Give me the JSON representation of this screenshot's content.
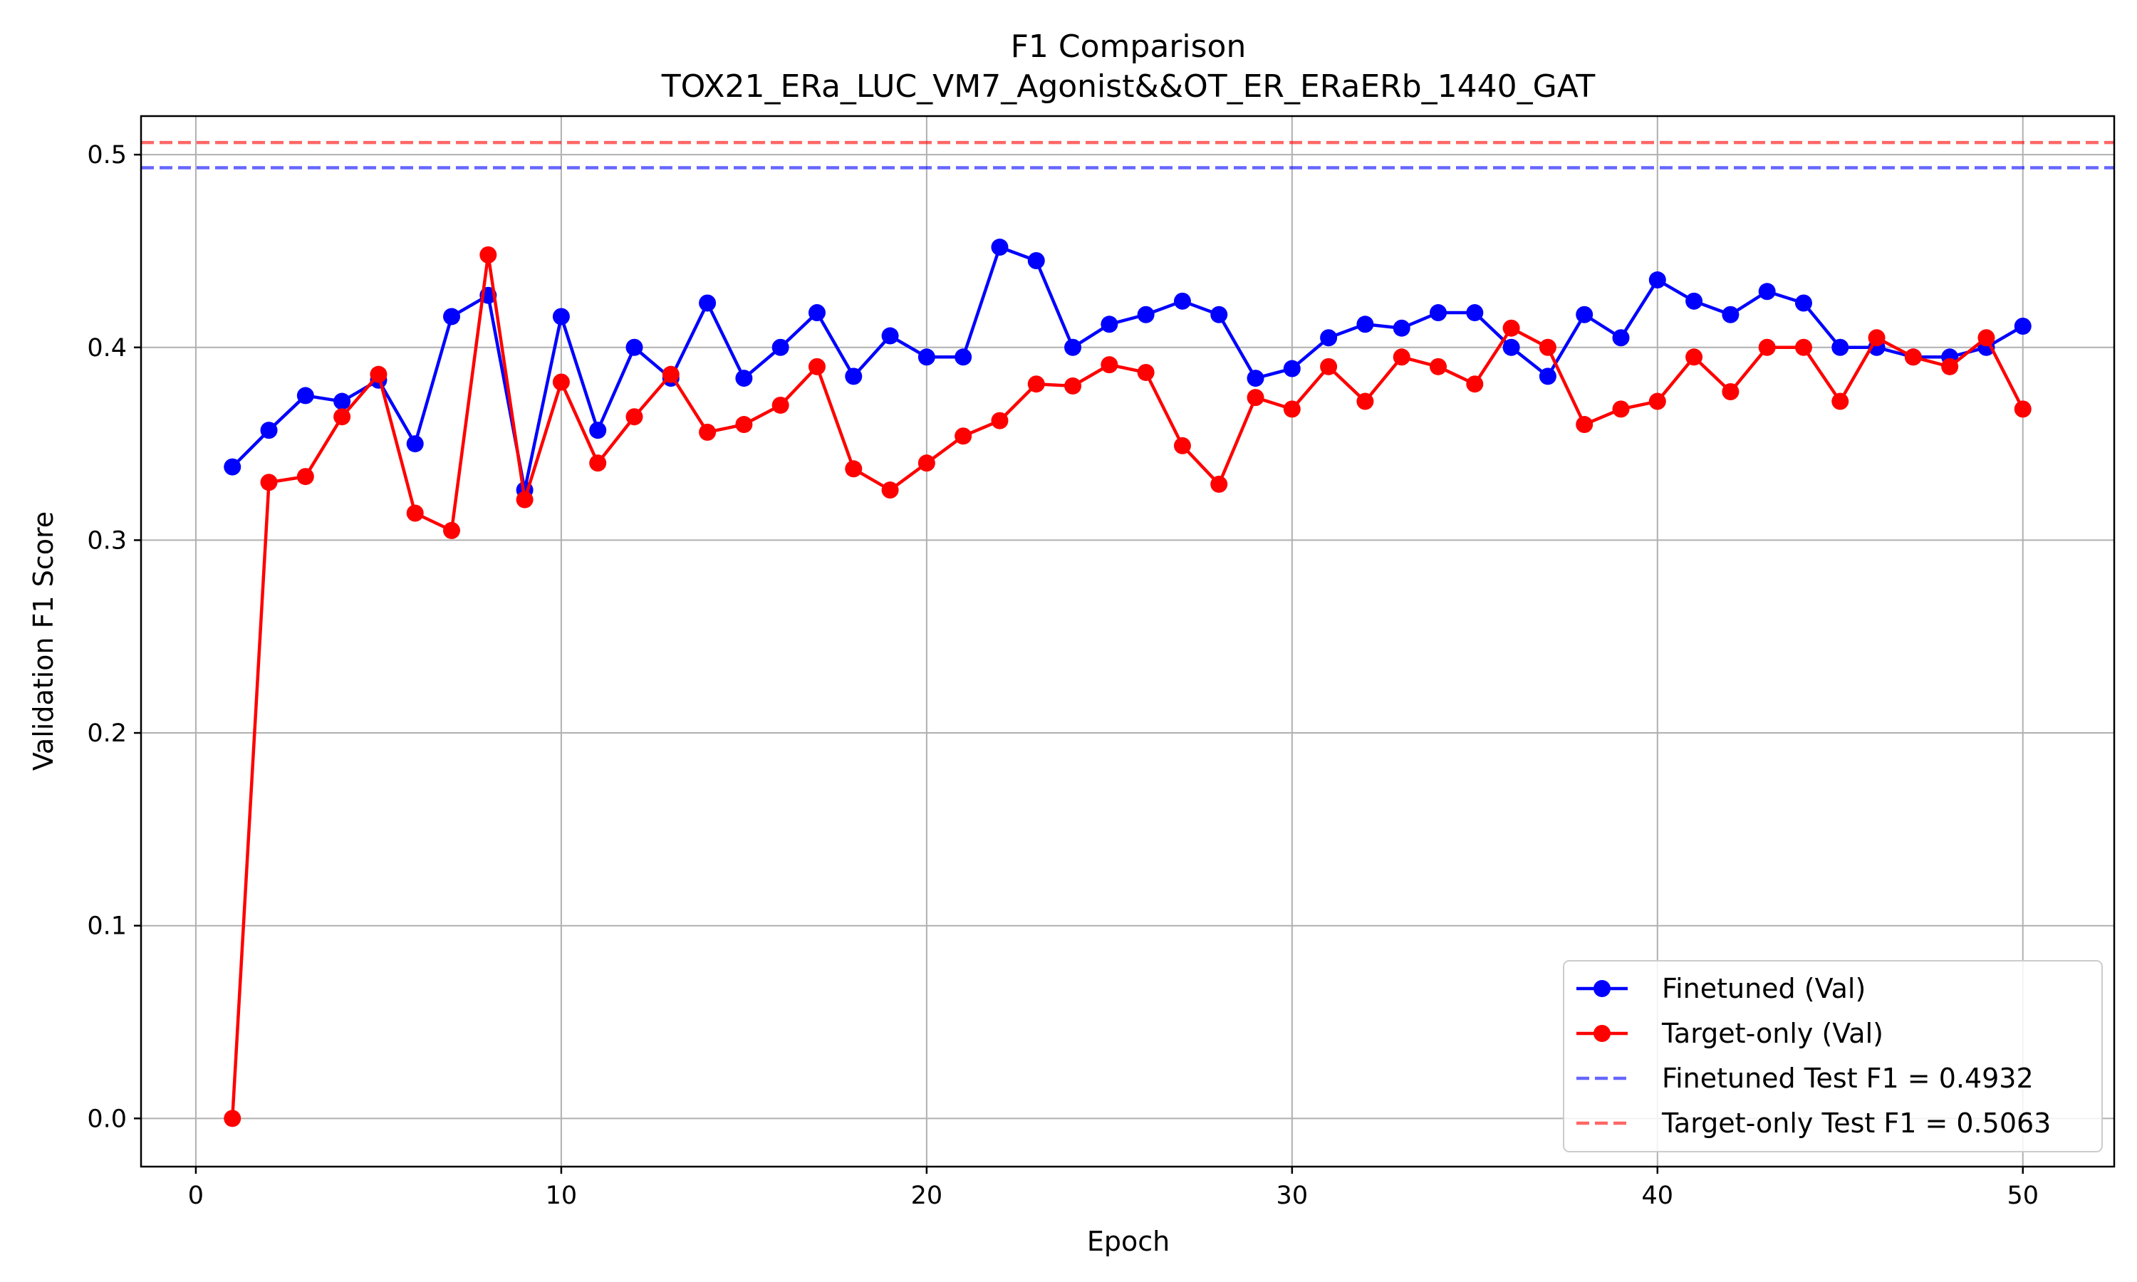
{
  "chart_data": {
    "type": "line",
    "title": "F1 Comparison",
    "subtitle": "TOX21_ERa_LUC_VM7_Agonist&&OT_ER_ERaERb_1440_GAT",
    "xlabel": "Epoch",
    "ylabel": "Validation F1 Score",
    "xlim": [
      -1.5,
      52.5
    ],
    "ylim": [
      -0.025,
      0.52
    ],
    "xticks": [
      0,
      10,
      20,
      30,
      40,
      50
    ],
    "yticks": [
      0.0,
      0.1,
      0.2,
      0.3,
      0.4,
      0.5
    ],
    "xtick_labels": [
      "0",
      "10",
      "20",
      "30",
      "40",
      "50"
    ],
    "ytick_labels": [
      "0.0",
      "0.1",
      "0.2",
      "0.3",
      "0.4",
      "0.5"
    ],
    "grid": true,
    "legend_position": "bottom-right",
    "x": [
      1,
      2,
      3,
      4,
      5,
      6,
      7,
      8,
      9,
      10,
      11,
      12,
      13,
      14,
      15,
      16,
      17,
      18,
      19,
      20,
      21,
      22,
      23,
      24,
      25,
      26,
      27,
      28,
      29,
      30,
      31,
      32,
      33,
      34,
      35,
      36,
      37,
      38,
      39,
      40,
      41,
      42,
      43,
      44,
      45,
      46,
      47,
      48,
      49,
      50
    ],
    "series": [
      {
        "name": "Finetuned (Val)",
        "color": "#0000ff",
        "values": [
          0.338,
          0.357,
          0.375,
          0.372,
          0.383,
          0.35,
          0.416,
          0.427,
          0.326,
          0.416,
          0.357,
          0.4,
          0.384,
          0.423,
          0.384,
          0.4,
          0.418,
          0.385,
          0.406,
          0.395,
          0.395,
          0.452,
          0.445,
          0.4,
          0.412,
          0.417,
          0.424,
          0.417,
          0.384,
          0.389,
          0.405,
          0.412,
          0.41,
          0.418,
          0.418,
          0.4,
          0.385,
          0.417,
          0.405,
          0.435,
          0.424,
          0.417,
          0.429,
          0.423,
          0.4,
          0.4,
          0.395,
          0.395,
          0.4,
          0.411
        ]
      },
      {
        "name": "Target-only (Val)",
        "color": "#ff0000",
        "values": [
          0.0,
          0.33,
          0.333,
          0.364,
          0.386,
          0.314,
          0.305,
          0.448,
          0.321,
          0.382,
          0.34,
          0.364,
          0.386,
          0.356,
          0.36,
          0.37,
          0.39,
          0.337,
          0.326,
          0.34,
          0.354,
          0.362,
          0.381,
          0.38,
          0.391,
          0.387,
          0.349,
          0.329,
          0.374,
          0.368,
          0.39,
          0.372,
          0.395,
          0.39,
          0.381,
          0.41,
          0.4,
          0.36,
          0.368,
          0.372,
          0.395,
          0.377,
          0.4,
          0.4,
          0.372,
          0.405,
          0.395,
          0.39,
          0.405,
          0.368
        ]
      }
    ],
    "reference_lines": [
      {
        "name": "Finetuned Test F1 = 0.4932",
        "value": 0.4932,
        "color": "#0000ff",
        "style": "dashed"
      },
      {
        "name": "Target-only Test F1 = 0.5063",
        "value": 0.5063,
        "color": "#ff0000",
        "style": "dashed"
      }
    ]
  }
}
